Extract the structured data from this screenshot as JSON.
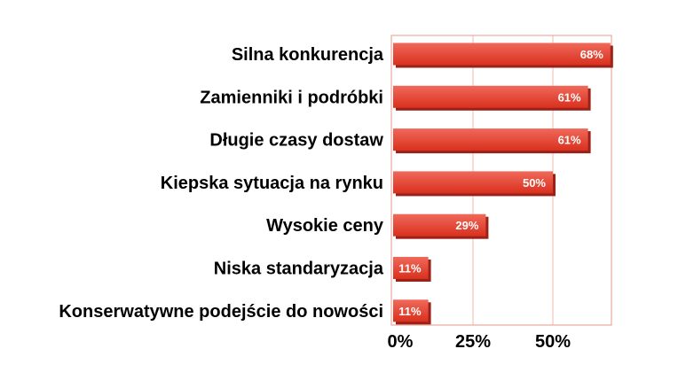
{
  "chart_data": {
    "type": "bar",
    "orientation": "horizontal",
    "categories": [
      "Silna konkurencja",
      "Zamienniki i podróbki",
      "Długie czasy dostaw",
      "Kiepska sytuacja na rynku",
      "Wysokie ceny",
      "Niska standaryzacja",
      "Konserwatywne podejście do nowości"
    ],
    "values": [
      68,
      61,
      61,
      50,
      29,
      11,
      11
    ],
    "data_labels": [
      "68%",
      "61%",
      "61%",
      "50%",
      "29%",
      "11%",
      "11%"
    ],
    "xlim": [
      0,
      69
    ],
    "xticks": [
      0,
      25,
      50
    ],
    "xtick_labels": [
      "0%",
      "25%",
      "50%"
    ],
    "grid": "vertical",
    "legend": "none",
    "title": "",
    "xlabel": "",
    "ylabel": ""
  },
  "colors": {
    "bar_top": "#f0695a",
    "bar_bottom": "#d9301e",
    "bar_shadow": "#9b2218",
    "plot_frame": "#e89a8e",
    "grid": "#f0b8ae"
  }
}
